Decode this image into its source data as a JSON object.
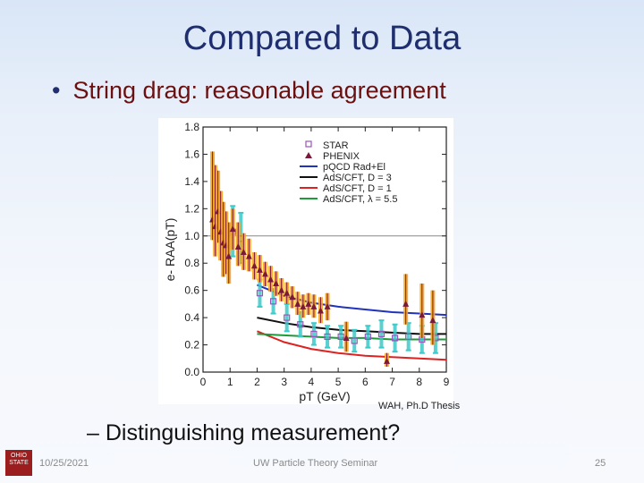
{
  "slide": {
    "title": "Compared to Data",
    "bullet": "String drag: reasonable agreement",
    "credit": "WAH, Ph.D Thesis",
    "sub_bullet": "– Distinguishing measurement?",
    "footer_date": "10/25/2021",
    "footer_center": "UW Particle Theory Seminar",
    "page_number": "25",
    "logo_text": "OHIO STATE"
  },
  "chart_data": {
    "type": "scatter",
    "xlabel": "pT (GeV)",
    "ylabel": "e- RAA(pT)",
    "xlim": [
      0,
      9
    ],
    "ylim": [
      0,
      1.8
    ],
    "x_ticks": [
      "0",
      "1",
      "2",
      "3",
      "4",
      "5",
      "6",
      "7",
      "8",
      "9"
    ],
    "y_ticks": [
      "0.0",
      "0.2",
      "0.4",
      "0.6",
      "0.8",
      "1.0",
      "1.2",
      "1.4",
      "1.6",
      "1.8"
    ],
    "reference_line_y": 1.0,
    "legend_position": "top-right",
    "legend": [
      "STAR",
      "PHENIX",
      "pQCD Rad+El",
      "AdS/CFT, D = 3",
      "AdS/CFT, D = 1",
      "AdS/CFT, λ = 5.5"
    ],
    "colors": {
      "phenix": "#7a1a3a",
      "phenix_sys": "#f5a623",
      "star": "#9a55bb",
      "star_sys": "#3ec9c9",
      "pqcd": "#2233bb",
      "ads_d3": "#111111",
      "ads_d1": "#dd2222",
      "ads_lambda": "#1f9a3a"
    },
    "series": [
      {
        "name": "PHENIX",
        "points": [
          {
            "x": 0.35,
            "y": 1.12,
            "lo": 0.97,
            "hi": 1.62
          },
          {
            "x": 0.45,
            "y": 1.07,
            "lo": 0.85,
            "hi": 1.52
          },
          {
            "x": 0.55,
            "y": 1.18,
            "lo": 0.95,
            "hi": 1.48
          },
          {
            "x": 0.65,
            "y": 1.03,
            "lo": 0.82,
            "hi": 1.33
          },
          {
            "x": 0.75,
            "y": 0.95,
            "lo": 0.7,
            "hi": 1.25
          },
          {
            "x": 0.85,
            "y": 0.93,
            "lo": 0.72,
            "hi": 1.18
          },
          {
            "x": 0.95,
            "y": 0.85,
            "lo": 0.65,
            "hi": 1.1
          },
          {
            "x": 1.1,
            "y": 1.05,
            "lo": 0.9,
            "hi": 1.2
          },
          {
            "x": 1.3,
            "y": 0.92,
            "lo": 0.78,
            "hi": 1.1
          },
          {
            "x": 1.5,
            "y": 0.88,
            "lo": 0.75,
            "hi": 1.02
          },
          {
            "x": 1.7,
            "y": 0.85,
            "lo": 0.74,
            "hi": 0.98
          },
          {
            "x": 1.9,
            "y": 0.78,
            "lo": 0.68,
            "hi": 0.88
          },
          {
            "x": 2.1,
            "y": 0.75,
            "lo": 0.66,
            "hi": 0.86
          },
          {
            "x": 2.3,
            "y": 0.72,
            "lo": 0.63,
            "hi": 0.81
          },
          {
            "x": 2.5,
            "y": 0.68,
            "lo": 0.59,
            "hi": 0.78
          },
          {
            "x": 2.7,
            "y": 0.65,
            "lo": 0.56,
            "hi": 0.74
          },
          {
            "x": 2.9,
            "y": 0.6,
            "lo": 0.52,
            "hi": 0.69
          },
          {
            "x": 3.1,
            "y": 0.58,
            "lo": 0.5,
            "hi": 0.66
          },
          {
            "x": 3.3,
            "y": 0.55,
            "lo": 0.47,
            "hi": 0.63
          },
          {
            "x": 3.5,
            "y": 0.5,
            "lo": 0.42,
            "hi": 0.59
          },
          {
            "x": 3.7,
            "y": 0.48,
            "lo": 0.4,
            "hi": 0.57
          },
          {
            "x": 3.9,
            "y": 0.5,
            "lo": 0.42,
            "hi": 0.58
          },
          {
            "x": 4.1,
            "y": 0.48,
            "lo": 0.4,
            "hi": 0.57
          },
          {
            "x": 4.35,
            "y": 0.45,
            "lo": 0.36,
            "hi": 0.55
          },
          {
            "x": 4.6,
            "y": 0.48,
            "lo": 0.38,
            "hi": 0.58
          },
          {
            "x": 5.3,
            "y": 0.25,
            "lo": 0.15,
            "hi": 0.37
          },
          {
            "x": 6.8,
            "y": 0.08,
            "lo": 0.04,
            "hi": 0.14
          },
          {
            "x": 7.5,
            "y": 0.5,
            "lo": 0.35,
            "hi": 0.72
          },
          {
            "x": 8.1,
            "y": 0.42,
            "lo": 0.25,
            "hi": 0.65
          },
          {
            "x": 8.5,
            "y": 0.38,
            "lo": 0.2,
            "hi": 0.6
          }
        ]
      },
      {
        "name": "STAR",
        "points": [
          {
            "x": 1.1,
            "y": 1.03,
            "lo": 0.85,
            "hi": 1.22
          },
          {
            "x": 1.4,
            "y": 0.98,
            "lo": 0.8,
            "hi": 1.17
          },
          {
            "x": 2.1,
            "y": 0.58,
            "lo": 0.48,
            "hi": 0.68
          },
          {
            "x": 2.6,
            "y": 0.52,
            "lo": 0.43,
            "hi": 0.61
          },
          {
            "x": 3.1,
            "y": 0.4,
            "lo": 0.3,
            "hi": 0.5
          },
          {
            "x": 3.6,
            "y": 0.35,
            "lo": 0.26,
            "hi": 0.44
          },
          {
            "x": 4.1,
            "y": 0.28,
            "lo": 0.2,
            "hi": 0.36
          },
          {
            "x": 4.6,
            "y": 0.26,
            "lo": 0.18,
            "hi": 0.34
          },
          {
            "x": 5.1,
            "y": 0.26,
            "lo": 0.18,
            "hi": 0.34
          },
          {
            "x": 5.6,
            "y": 0.23,
            "lo": 0.15,
            "hi": 0.31
          },
          {
            "x": 6.1,
            "y": 0.26,
            "lo": 0.18,
            "hi": 0.34
          },
          {
            "x": 6.6,
            "y": 0.28,
            "lo": 0.18,
            "hi": 0.38
          },
          {
            "x": 7.1,
            "y": 0.25,
            "lo": 0.15,
            "hi": 0.35
          },
          {
            "x": 7.6,
            "y": 0.26,
            "lo": 0.16,
            "hi": 0.36
          },
          {
            "x": 8.1,
            "y": 0.24,
            "lo": 0.14,
            "hi": 0.34
          },
          {
            "x": 8.6,
            "y": 0.25,
            "lo": 0.14,
            "hi": 0.36
          }
        ]
      },
      {
        "name": "pQCD Rad+El",
        "x": [
          2,
          3,
          4,
          5,
          6,
          7,
          8,
          9
        ],
        "y": [
          0.64,
          0.56,
          0.51,
          0.48,
          0.46,
          0.44,
          0.43,
          0.42
        ]
      },
      {
        "name": "AdS/CFT, D = 3",
        "x": [
          2,
          3,
          4,
          5,
          6,
          7,
          8,
          9
        ],
        "y": [
          0.4,
          0.36,
          0.33,
          0.31,
          0.3,
          0.29,
          0.28,
          0.28
        ]
      },
      {
        "name": "AdS/CFT, D = 1",
        "x": [
          2,
          3,
          4,
          5,
          6,
          7,
          8,
          9
        ],
        "y": [
          0.3,
          0.22,
          0.17,
          0.14,
          0.12,
          0.11,
          0.1,
          0.09
        ]
      },
      {
        "name": "AdS/CFT, λ = 5.5",
        "x": [
          2,
          3,
          4,
          5,
          6,
          7,
          8,
          9
        ],
        "y": [
          0.28,
          0.27,
          0.26,
          0.25,
          0.25,
          0.24,
          0.24,
          0.24
        ]
      }
    ]
  }
}
